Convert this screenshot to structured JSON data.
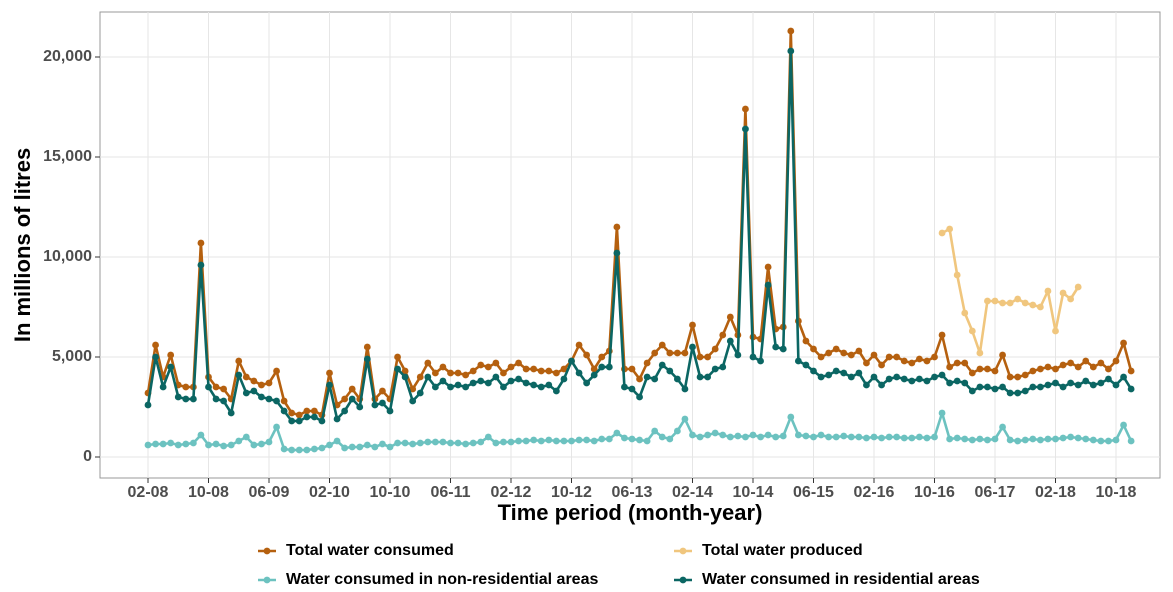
{
  "chart_data": {
    "type": "line",
    "x_label": "Time period (month-year)",
    "y_label": "In millions of litres",
    "categories": [
      "02-08",
      null,
      null,
      null,
      null,
      null,
      null,
      null,
      "10-08",
      null,
      null,
      null,
      null,
      null,
      null,
      null,
      "06-09",
      null,
      null,
      null,
      null,
      null,
      null,
      null,
      "02-10",
      null,
      null,
      null,
      null,
      null,
      null,
      null,
      "10-10",
      null,
      null,
      null,
      null,
      null,
      null,
      null,
      "06-11",
      null,
      null,
      null,
      null,
      null,
      null,
      null,
      "02-12",
      null,
      null,
      null,
      null,
      null,
      null,
      null,
      "10-12",
      null,
      null,
      null,
      null,
      null,
      null,
      null,
      "06-13",
      null,
      null,
      null,
      null,
      null,
      null,
      null,
      "02-14",
      null,
      null,
      null,
      null,
      null,
      null,
      null,
      "10-14",
      null,
      null,
      null,
      null,
      null,
      null,
      null,
      "06-15",
      null,
      null,
      null,
      null,
      null,
      null,
      null,
      "02-16",
      null,
      null,
      null,
      null,
      null,
      null,
      null,
      "10-16",
      null,
      null,
      null,
      null,
      null,
      null,
      null,
      "06-17",
      null,
      null,
      null,
      null,
      null,
      null,
      null,
      "02-18",
      null,
      null,
      null,
      null,
      null,
      null,
      null,
      "10-18",
      null,
      null
    ],
    "ylim": [
      -1050,
      22250
    ],
    "yticks": [
      0,
      {
        "value": 5000,
        "label": "5,000"
      },
      {
        "value": 10000,
        "label": "10,000"
      },
      {
        "value": 15000,
        "label": "15,000"
      },
      {
        "value": 20000,
        "label": "20,000"
      }
    ],
    "grid": true,
    "legend_position": "bottom",
    "series": [
      {
        "name": "Total water consumed",
        "color": "#b5600f",
        "values": [
          3200,
          5600,
          4000,
          5100,
          3600,
          3500,
          3500,
          10700,
          4000,
          3500,
          3400,
          2900,
          4800,
          4000,
          3800,
          3600,
          3700,
          4300,
          2800,
          2200,
          2100,
          2300,
          2300,
          2100,
          4200,
          2600,
          2900,
          3400,
          2900,
          5500,
          2900,
          3300,
          2900,
          5000,
          4300,
          3400,
          4000,
          4700,
          4200,
          4500,
          4200,
          4200,
          4100,
          4300,
          4600,
          4500,
          4700,
          4200,
          4500,
          4700,
          4400,
          4400,
          4300,
          4300,
          4200,
          4400,
          4800,
          5600,
          5100,
          4400,
          5000,
          5300,
          11500,
          4400,
          4400,
          3900,
          4700,
          5200,
          5600,
          5200,
          5200,
          5200,
          6600,
          5000,
          5000,
          5400,
          6100,
          7000,
          6100,
          17400,
          6000,
          5900,
          9500,
          6400,
          6500,
          21300,
          6800,
          5800,
          5400,
          5000,
          5200,
          5400,
          5200,
          5100,
          5300,
          4700,
          5100,
          4600,
          5000,
          5000,
          4800,
          4700,
          4900,
          4800,
          5000,
          6100,
          4500,
          4700,
          4700,
          4200,
          4400,
          4400,
          4300,
          5100,
          4000,
          4000,
          4100,
          4300,
          4400,
          4500,
          4400,
          4600,
          4700,
          4500,
          4800,
          4500,
          4700,
          4400,
          4800,
          5700,
          4300
        ]
      },
      {
        "name": "Total water produced",
        "color": "#f0c67e",
        "values": [
          null,
          null,
          null,
          null,
          null,
          null,
          null,
          null,
          null,
          null,
          null,
          null,
          null,
          null,
          null,
          null,
          null,
          null,
          null,
          null,
          null,
          null,
          null,
          null,
          null,
          null,
          null,
          null,
          null,
          null,
          null,
          null,
          null,
          null,
          null,
          null,
          null,
          null,
          null,
          null,
          null,
          null,
          null,
          null,
          null,
          null,
          null,
          null,
          null,
          null,
          null,
          null,
          null,
          null,
          null,
          null,
          null,
          null,
          null,
          null,
          null,
          null,
          null,
          null,
          null,
          null,
          null,
          null,
          null,
          null,
          null,
          null,
          null,
          null,
          null,
          null,
          null,
          null,
          null,
          null,
          null,
          null,
          null,
          null,
          null,
          null,
          null,
          null,
          null,
          null,
          null,
          null,
          null,
          null,
          null,
          null,
          null,
          null,
          null,
          null,
          null,
          null,
          null,
          null,
          null,
          11200,
          11400,
          9100,
          7200,
          6300,
          5200,
          7800,
          7800,
          7700,
          7700,
          7900,
          7700,
          7600,
          7500,
          8300,
          6300,
          8200,
          7900,
          8500,
          null,
          null,
          null,
          null,
          null,
          null,
          null
        ]
      },
      {
        "name": "Water consumed in non-residential areas",
        "color": "#6cc2c0",
        "values": [
          600,
          650,
          650,
          700,
          600,
          650,
          700,
          1100,
          600,
          650,
          550,
          600,
          800,
          1000,
          600,
          650,
          750,
          1500,
          400,
          350,
          350,
          350,
          400,
          450,
          600,
          800,
          450,
          500,
          500,
          600,
          500,
          650,
          500,
          700,
          700,
          650,
          700,
          750,
          750,
          750,
          700,
          700,
          650,
          700,
          750,
          1000,
          700,
          750,
          750,
          800,
          800,
          850,
          800,
          850,
          800,
          800,
          800,
          850,
          850,
          800,
          900,
          900,
          1200,
          950,
          900,
          850,
          800,
          1300,
          1000,
          900,
          1300,
          1900,
          1100,
          1000,
          1100,
          1200,
          1100,
          1000,
          1050,
          1000,
          1100,
          1000,
          1100,
          1000,
          1050,
          2000,
          1100,
          1050,
          1000,
          1100,
          1000,
          1000,
          1050,
          1000,
          1000,
          950,
          1000,
          950,
          1000,
          1000,
          950,
          950,
          1000,
          950,
          1000,
          2200,
          900,
          950,
          900,
          850,
          900,
          850,
          900,
          1500,
          850,
          800,
          850,
          900,
          850,
          900,
          900,
          950,
          1000,
          950,
          900,
          850,
          800,
          800,
          850,
          1600,
          800
        ]
      },
      {
        "name": "Water consumed in residential areas",
        "color": "#0b6663",
        "values": [
          2600,
          5000,
          3500,
          4500,
          3000,
          2900,
          2900,
          9600,
          3500,
          2900,
          2800,
          2200,
          4100,
          3200,
          3300,
          3000,
          2900,
          2800,
          2300,
          1800,
          1800,
          2000,
          2000,
          1800,
          3600,
          1900,
          2300,
          2900,
          2500,
          4900,
          2600,
          2700,
          2300,
          4400,
          4000,
          2800,
          3200,
          4000,
          3500,
          3800,
          3500,
          3600,
          3500,
          3700,
          3800,
          3700,
          4000,
          3500,
          3800,
          3900,
          3700,
          3600,
          3500,
          3600,
          3300,
          3900,
          4800,
          4200,
          3700,
          4100,
          4500,
          4500,
          10200,
          3500,
          3400,
          3000,
          4000,
          3900,
          4600,
          4300,
          3900,
          3400,
          5500,
          4000,
          4000,
          4400,
          4500,
          5800,
          5100,
          16400,
          5000,
          4800,
          8600,
          5500,
          5400,
          20300,
          4800,
          4600,
          4300,
          4000,
          4100,
          4300,
          4200,
          4000,
          4200,
          3600,
          4000,
          3600,
          3900,
          4000,
          3900,
          3800,
          3900,
          3800,
          4000,
          4100,
          3700,
          3800,
          3700,
          3300,
          3500,
          3500,
          3400,
          3500,
          3200,
          3200,
          3300,
          3500,
          3500,
          3600,
          3700,
          3500,
          3700,
          3600,
          3800,
          3600,
          3700,
          3900,
          3600,
          4000,
          3400
        ]
      }
    ]
  }
}
